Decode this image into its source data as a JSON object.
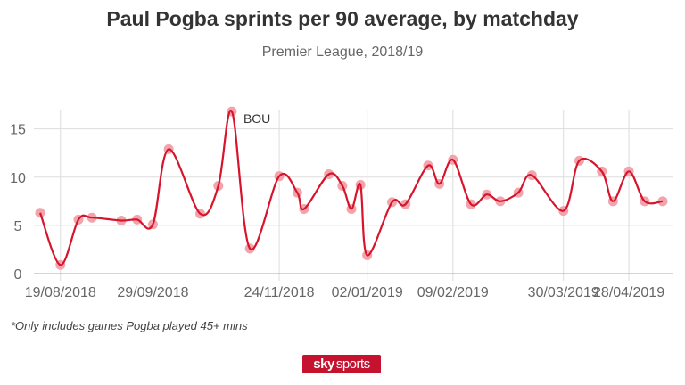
{
  "header": {
    "title": "Paul Pogba sprints per 90 average, by matchday",
    "subtitle": "Premier League, 2018/19"
  },
  "footnote": "*Only includes games Pogba played 45+ mins",
  "logo": {
    "sky": "sky",
    "sports": "sports"
  },
  "colors": {
    "line": "#d7142b",
    "marker": "#f2a3ac",
    "grid": "#dddddd",
    "axis": "#aaaaaa",
    "tick_text": "#666666"
  },
  "chart_data": {
    "type": "line",
    "title": "Paul Pogba sprints per 90 average, by matchday",
    "subtitle": "Premier League, 2018/19",
    "xlabel": "",
    "ylabel": "",
    "grid": true,
    "legend": "none",
    "x_axis_type": "date",
    "x_ticks": [
      "2018-08-19",
      "2018-09-29",
      "2018-11-24",
      "2019-01-02",
      "2019-02-09",
      "2019-03-30",
      "2019-04-28"
    ],
    "x_tick_labels": [
      "19/08/2018",
      "29/09/2018",
      "24/11/2018",
      "02/01/2019",
      "09/02/2019",
      "30/03/2019",
      "28/04/2019"
    ],
    "xlim": [
      "2018-08-10",
      "2019-05-13"
    ],
    "ylim": [
      0,
      17
    ],
    "y_ticks": [
      0,
      5,
      10,
      15
    ],
    "series": [
      {
        "x": [
          "2018-08-10",
          "2018-08-19",
          "2018-08-27",
          "2018-09-02",
          "2018-09-15",
          "2018-09-22",
          "2018-09-29",
          "2018-10-06",
          "2018-10-20",
          "2018-10-28",
          "2018-11-03",
          "2018-11-11",
          "2018-11-24",
          "2018-12-02",
          "2018-12-05",
          "2018-12-16",
          "2018-12-22",
          "2018-12-26",
          "2018-12-30",
          "2019-01-02",
          "2019-01-13",
          "2019-01-19",
          "2019-01-29",
          "2019-02-03",
          "2019-02-09",
          "2019-02-17",
          "2019-02-24",
          "2019-03-02",
          "2019-03-10",
          "2019-03-16",
          "2019-03-30",
          "2019-04-06",
          "2019-04-16",
          "2019-04-21",
          "2019-04-28",
          "2019-05-05",
          "2019-05-13"
        ],
        "y": [
          6.3,
          0.9,
          5.6,
          5.8,
          5.5,
          5.6,
          5.1,
          12.9,
          6.2,
          9.1,
          16.8,
          2.6,
          10.1,
          8.4,
          6.7,
          10.3,
          9.1,
          6.7,
          9.2,
          1.9,
          7.4,
          7.2,
          11.2,
          9.3,
          11.8,
          7.2,
          8.2,
          7.5,
          8.4,
          10.2,
          6.5,
          11.7,
          10.6,
          7.5,
          10.6,
          7.5,
          7.5
        ],
        "note": ""
      }
    ],
    "annotations": [
      {
        "text": "BOU",
        "x": "2018-11-03",
        "y": 16.8
      }
    ]
  }
}
